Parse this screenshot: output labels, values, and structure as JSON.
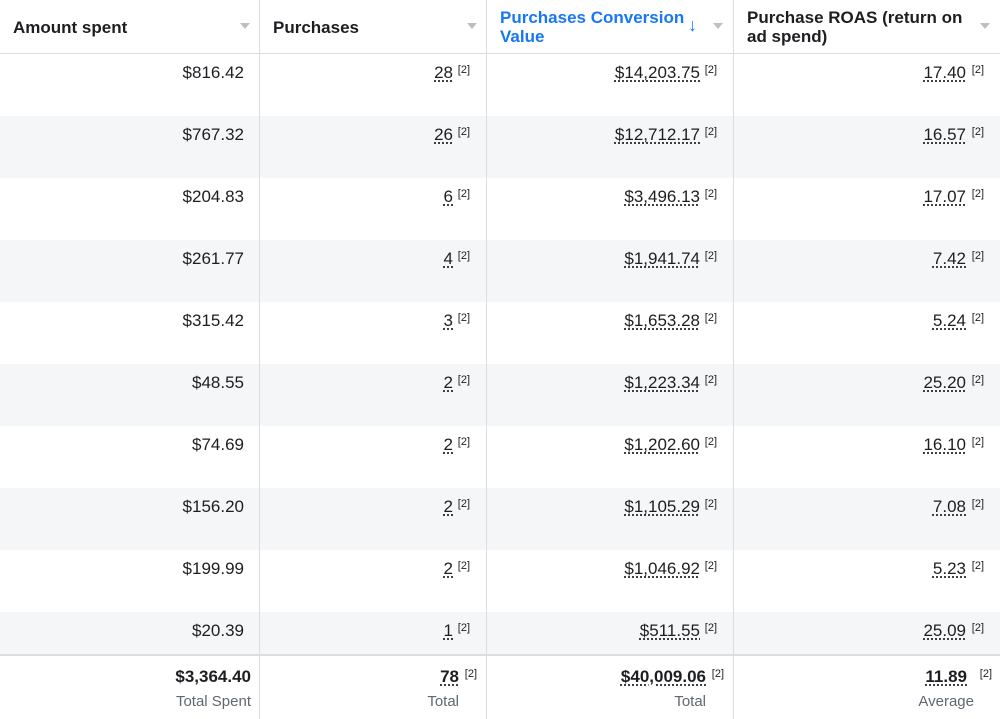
{
  "columns": [
    {
      "label": "Amount spent"
    },
    {
      "label": "Purchases"
    },
    {
      "label": "Purchases Conversion Value",
      "sorted": "descending",
      "accent": "#1877f2"
    },
    {
      "label": "Purchase ROAS (return on ad spend)"
    }
  ],
  "sort_icon": "↓",
  "footnote": "[2]",
  "rows": [
    {
      "spent": "$816.42",
      "purchases": "28",
      "value": "$14,203.75",
      "roas": "17.40"
    },
    {
      "spent": "$767.32",
      "purchases": "26",
      "value": "$12,712.17",
      "roas": "16.57"
    },
    {
      "spent": "$204.83",
      "purchases": "6",
      "value": "$3,496.13",
      "roas": "17.07"
    },
    {
      "spent": "$261.77",
      "purchases": "4",
      "value": "$1,941.74",
      "roas": "7.42"
    },
    {
      "spent": "$315.42",
      "purchases": "3",
      "value": "$1,653.28",
      "roas": "5.24"
    },
    {
      "spent": "$48.55",
      "purchases": "2",
      "value": "$1,223.34",
      "roas": "25.20"
    },
    {
      "spent": "$74.69",
      "purchases": "2",
      "value": "$1,202.60",
      "roas": "16.10"
    },
    {
      "spent": "$156.20",
      "purchases": "2",
      "value": "$1,105.29",
      "roas": "7.08"
    },
    {
      "spent": "$199.99",
      "purchases": "2",
      "value": "$1,046.92",
      "roas": "5.23"
    },
    {
      "spent": "$20.39",
      "purchases": "1",
      "value": "$511.55",
      "roas": "25.09"
    }
  ],
  "totals": {
    "spent": {
      "value": "$3,364.40",
      "label": "Total Spent"
    },
    "purchases": {
      "value": "78",
      "label": "Total"
    },
    "value": {
      "value": "$40,009.06",
      "label": "Total"
    },
    "roas": {
      "value": "11.89",
      "label": "Average"
    }
  },
  "colors": {
    "accent": "#1877f2",
    "alt_row": "#f5f6f7",
    "border": "#dadde1",
    "muted": "#606770"
  }
}
